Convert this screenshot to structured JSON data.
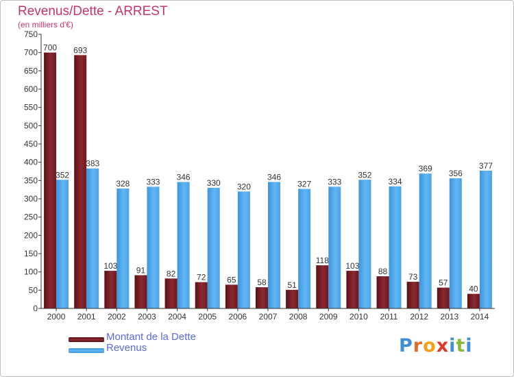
{
  "title": "Revenus/Dette - ARREST",
  "subtitle": "(en milliers d'€)",
  "colors": {
    "debt": "#7a1c22",
    "revenue": "#4ea7ea",
    "title": "#c8336e",
    "legend_text": "#5a6ae0"
  },
  "logo": {
    "letters": [
      {
        "ch": "P",
        "color": "#3f8ed8"
      },
      {
        "ch": "r",
        "color": "#e46b2a"
      },
      {
        "ch": "o",
        "color": "#f0a21b"
      },
      {
        "ch": "x",
        "color": "#e2362c"
      },
      {
        "ch": "i",
        "color": "#3f8ed8"
      },
      {
        "ch": "t",
        "color": "#8ab83b"
      },
      {
        "ch": "i",
        "color": "#3f8ed8"
      }
    ]
  },
  "chart_data": {
    "type": "bar",
    "title": "Revenus/Dette - ARREST",
    "subtitle": "(en milliers d'€)",
    "categories": [
      "2000",
      "2001",
      "2002",
      "2003",
      "2004",
      "2005",
      "2006",
      "2007",
      "2008",
      "2009",
      "2010",
      "2011",
      "2012",
      "2013",
      "2014"
    ],
    "series": [
      {
        "name": "Montant de la Dette",
        "values": [
          700,
          693,
          103,
          91,
          82,
          72,
          65,
          58,
          51,
          118,
          103,
          88,
          73,
          57,
          40
        ]
      },
      {
        "name": "Revenus",
        "values": [
          352,
          383,
          328,
          333,
          346,
          330,
          320,
          346,
          327,
          333,
          352,
          334,
          369,
          356,
          377
        ]
      }
    ],
    "ylim": [
      0,
      750
    ],
    "ytick_step": 50,
    "grid": false,
    "legend_position": "bottom-left"
  }
}
